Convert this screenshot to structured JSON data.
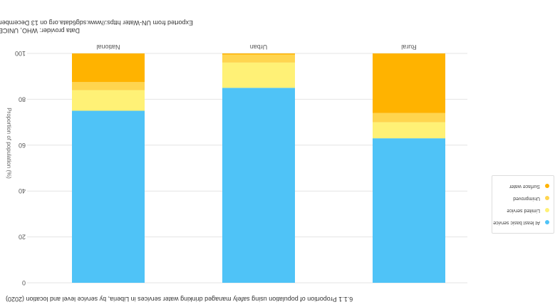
{
  "meta": {
    "exported_from": "Exported from UN-Water https://www.sdg6data.org on 13 December 2021",
    "data_provider": "Data provider: WHO, UNICEF"
  },
  "chart_data": {
    "type": "bar",
    "stacked": true,
    "title": "6.1.1 Proportion of population using safely managed drinking water services in Liberia, by service level and location (2020)",
    "ylabel": "Proportion of population (%)",
    "xlabel": "",
    "ylim": [
      0,
      100
    ],
    "yticks": [
      0,
      20,
      40,
      60,
      80,
      100
    ],
    "grid": true,
    "legend_position": "right",
    "categories": [
      "National",
      "Urban",
      "Rural"
    ],
    "series": [
      {
        "name": "At least basic service",
        "color": "#4fc3f7",
        "values": [
          75,
          85,
          63
        ]
      },
      {
        "name": "Limited service",
        "color": "#fff176",
        "values": [
          9,
          11,
          7
        ]
      },
      {
        "name": "Unimproved",
        "color": "#ffd54f",
        "values": [
          3.5,
          3.5,
          4
        ]
      },
      {
        "name": "Surface water",
        "color": "#ffb300",
        "values": [
          12.5,
          0.5,
          26
        ]
      }
    ]
  }
}
